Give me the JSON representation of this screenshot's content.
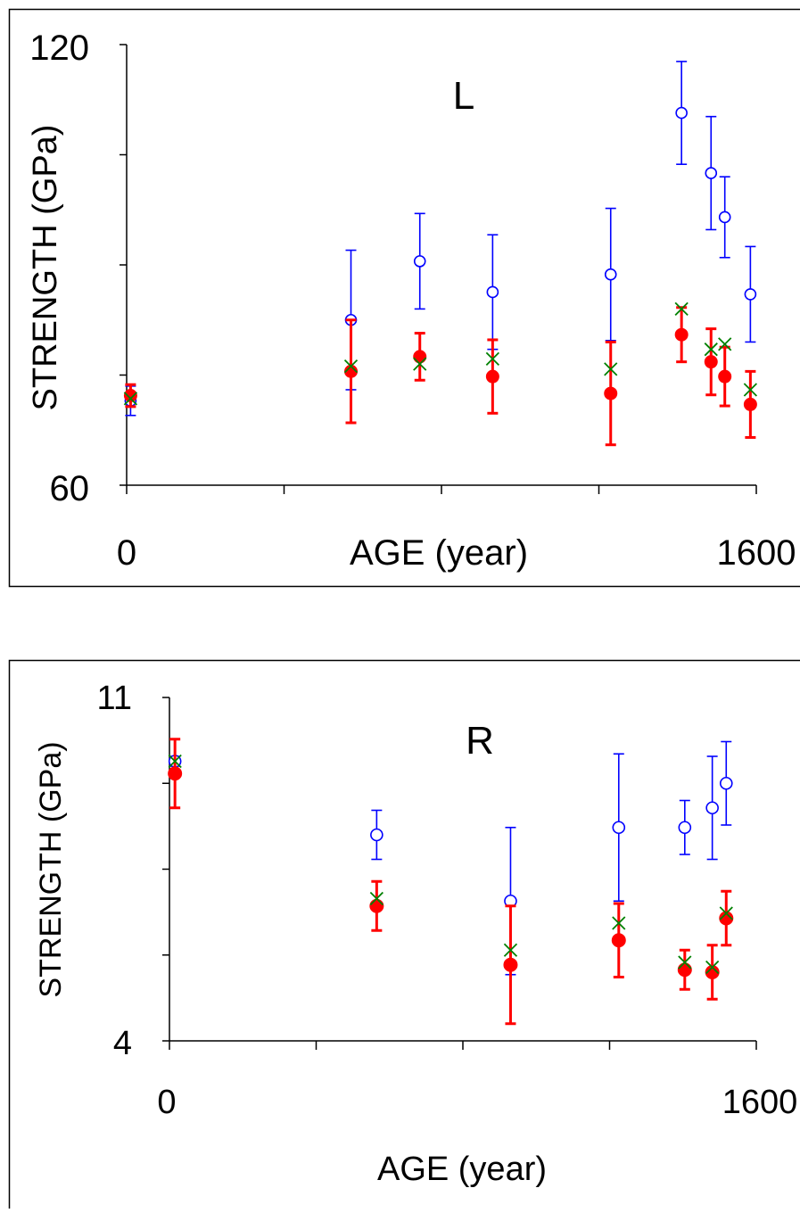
{
  "chart_data": [
    {
      "type": "scatter",
      "title": "L",
      "xlabel": "AGE (year)",
      "ylabel": "STRENGTH (GPa)",
      "xlim": [
        0,
        1600
      ],
      "ylim": [
        60,
        120
      ],
      "x_tick_labels": [
        "0",
        "1600"
      ],
      "y_tick_labels": [
        "60",
        "120"
      ],
      "grid": false,
      "legend": "none",
      "series": [
        {
          "marker": "open-circle",
          "color": "#0000ff",
          "points": [
            {
              "x": 10,
              "y": 71.5,
              "err": 2.0
            },
            {
              "x": 570,
              "y": 82.5,
              "err": 9.5
            },
            {
              "x": 745,
              "y": 90.5,
              "err": 6.5
            },
            {
              "x": 930,
              "y": 86.3,
              "err": 7.8
            },
            {
              "x": 1230,
              "y": 88.7,
              "err": 9.0
            },
            {
              "x": 1410,
              "y": 110.7,
              "err": 7.0
            },
            {
              "x": 1485,
              "y": 102.5,
              "err": 7.7
            },
            {
              "x": 1520,
              "y": 96.5,
              "err": 5.5
            },
            {
              "x": 1585,
              "y": 86.0,
              "err": 6.5
            }
          ]
        },
        {
          "marker": "filled-circle",
          "color": "#ff0000",
          "points": [
            {
              "x": 10,
              "y": 72.2,
              "err": 1.5
            },
            {
              "x": 570,
              "y": 75.5,
              "err": 7.0
            },
            {
              "x": 745,
              "y": 77.5,
              "err": 3.2
            },
            {
              "x": 930,
              "y": 74.8,
              "err": 5.0
            },
            {
              "x": 1230,
              "y": 72.5,
              "err": 7.0
            },
            {
              "x": 1410,
              "y": 80.5,
              "err": 3.7
            },
            {
              "x": 1485,
              "y": 76.8,
              "err": 4.5
            },
            {
              "x": 1520,
              "y": 74.8,
              "err": 4.0
            },
            {
              "x": 1585,
              "y": 71.0,
              "err": 4.5
            }
          ]
        },
        {
          "marker": "x",
          "color": "#008000",
          "points": [
            {
              "x": 10,
              "y": 71.8
            },
            {
              "x": 570,
              "y": 76.2
            },
            {
              "x": 745,
              "y": 76.5
            },
            {
              "x": 930,
              "y": 77.2
            },
            {
              "x": 1230,
              "y": 75.8
            },
            {
              "x": 1410,
              "y": 84.0
            },
            {
              "x": 1485,
              "y": 78.5
            },
            {
              "x": 1520,
              "y": 79.2
            },
            {
              "x": 1585,
              "y": 73.0
            }
          ]
        }
      ]
    },
    {
      "type": "scatter",
      "title": "R",
      "xlabel": "AGE (year)",
      "ylabel": "STRENGTH (GPa)",
      "xlim": [
        0,
        1600
      ],
      "ylim": [
        4,
        11
      ],
      "x_tick_labels": [
        "0",
        "1600"
      ],
      "y_tick_labels": [
        "4",
        "11"
      ],
      "grid": false,
      "legend": "none",
      "series": [
        {
          "marker": "open-circle",
          "color": "#0000ff",
          "points": [
            {
              "x": 15,
              "y": 9.7,
              "err": 0.1
            },
            {
              "x": 565,
              "y": 8.2,
              "err": 0.5
            },
            {
              "x": 930,
              "y": 6.85,
              "err": 1.5
            },
            {
              "x": 1225,
              "y": 8.35,
              "err": 1.5
            },
            {
              "x": 1405,
              "y": 8.35,
              "err": 0.55
            },
            {
              "x": 1480,
              "y": 8.75,
              "err": 1.05
            },
            {
              "x": 1518,
              "y": 9.25,
              "err": 0.85
            }
          ]
        },
        {
          "marker": "filled-circle",
          "color": "#ff0000",
          "points": [
            {
              "x": 15,
              "y": 9.45,
              "err": 0.7
            },
            {
              "x": 565,
              "y": 6.75,
              "err": 0.5
            },
            {
              "x": 930,
              "y": 5.55,
              "err": 1.2
            },
            {
              "x": 1225,
              "y": 6.05,
              "err": 0.75
            },
            {
              "x": 1405,
              "y": 5.45,
              "err": 0.4
            },
            {
              "x": 1480,
              "y": 5.4,
              "err": 0.55
            },
            {
              "x": 1518,
              "y": 6.5,
              "err": 0.55
            }
          ]
        },
        {
          "marker": "x",
          "color": "#008000",
          "points": [
            {
              "x": 15,
              "y": 9.7
            },
            {
              "x": 565,
              "y": 6.9
            },
            {
              "x": 930,
              "y": 5.85
            },
            {
              "x": 1225,
              "y": 6.4
            },
            {
              "x": 1405,
              "y": 5.6
            },
            {
              "x": 1480,
              "y": 5.5
            },
            {
              "x": 1518,
              "y": 6.6
            }
          ]
        }
      ]
    }
  ]
}
